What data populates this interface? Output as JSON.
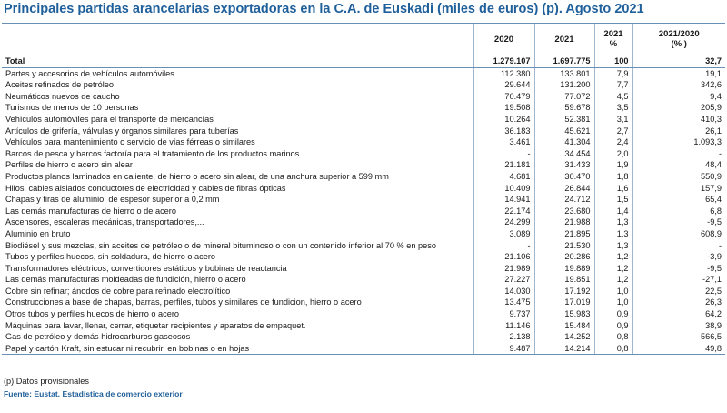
{
  "title": "Principales partidas arancelarias exportadoras en la C.A. de Euskadi (miles de euros) (p). Agosto 2021",
  "headers": [
    "",
    "2020",
    "2021",
    "2021\n%",
    "2021/2020\n(% )"
  ],
  "total": {
    "label": "Total",
    "v2020": "1.279.107",
    "v2021": "1.697.775",
    "pct": "100",
    "var": "32,7"
  },
  "rows": [
    {
      "label": "Partes y accesorios de vehículos automóviles",
      "v2020": "112.380",
      "v2021": "133.801",
      "pct": "7,9",
      "var": "19,1"
    },
    {
      "label": "Aceites refinados de petróleo",
      "v2020": "29.644",
      "v2021": "131.200",
      "pct": "7,7",
      "var": "342,6"
    },
    {
      "label": "Neumáticos nuevos de caucho",
      "v2020": "70.479",
      "v2021": "77.072",
      "pct": "4,5",
      "var": "9,4"
    },
    {
      "label": "Turismos de menos de  10 personas",
      "v2020": "19.508",
      "v2021": "59.678",
      "pct": "3,5",
      "var": "205,9"
    },
    {
      "label": "Vehículos automóviles para el transporte de mercancías",
      "v2020": "10.264",
      "v2021": "52.381",
      "pct": "3,1",
      "var": "410,3"
    },
    {
      "label": "Artículos de grifería, válvulas y órganos similares para tuberías",
      "v2020": "36.183",
      "v2021": "45.621",
      "pct": "2,7",
      "var": "26,1"
    },
    {
      "label": "Vehículos para mantenimiento o servicio de vías férreas o similares",
      "v2020": "3.461",
      "v2021": "41.304",
      "pct": "2,4",
      "var": "1.093,3"
    },
    {
      "label": "Barcos de pesca y barcos factoría para el tratamiento de los productos marinos",
      "v2020": "-",
      "v2021": "34.454",
      "pct": "2,0",
      "var": "-"
    },
    {
      "label": "Perfiles de hierro o acero sin alear",
      "v2020": "21.181",
      "v2021": "31.433",
      "pct": "1,9",
      "var": "48,4"
    },
    {
      "label": "Productos planos laminados en caliente, de hierro o acero sin alear, de una anchura superior a  599 mm",
      "v2020": "4.681",
      "v2021": "30.470",
      "pct": "1,8",
      "var": "550,9"
    },
    {
      "label": "Hilos, cables aislados conductores de electricidad y cables de fibras ópticas",
      "v2020": "10.409",
      "v2021": "26.844",
      "pct": "1,6",
      "var": "157,9"
    },
    {
      "label": "Chapas y tiras de aluminio, de espesor superior a 0,2 mm",
      "v2020": "14.941",
      "v2021": "24.712",
      "pct": "1,5",
      "var": "65,4"
    },
    {
      "label": "Las demás manufacturas de hierro o de acero",
      "v2020": "22.174",
      "v2021": "23.680",
      "pct": "1,4",
      "var": "6,8"
    },
    {
      "label": "Ascensores, escaleras mecánicas, transportadores,...",
      "v2020": "24.299",
      "v2021": "21.988",
      "pct": "1,3",
      "var": "-9,5"
    },
    {
      "label": "Aluminio en bruto",
      "v2020": "3.089",
      "v2021": "21.895",
      "pct": "1,3",
      "var": "608,9"
    },
    {
      "label": "Biodiésel y sus mezclas, sin aceites de petróleo o de mineral bituminoso o con un contenido inferior al 70 % en peso",
      "v2020": "-",
      "v2021": "21.530",
      "pct": "1,3",
      "var": "-"
    },
    {
      "label": "Tubos y perfiles huecos, sin soldadura, de hierro o acero",
      "v2020": "21.106",
      "v2021": "20.286",
      "pct": "1,2",
      "var": "-3,9"
    },
    {
      "label": "Transformadores eléctricos, convertidores estáticos y bobinas de reactancia",
      "v2020": "21.989",
      "v2021": "19.889",
      "pct": "1,2",
      "var": "-9,5"
    },
    {
      "label": "Las demás manufacturas moldeadas de fundición, hierro o acero",
      "v2020": "27.227",
      "v2021": "19.851",
      "pct": "1,2",
      "var": "-27,1"
    },
    {
      "label": "Cobre sin refinar; ánodos de cobre para refinado electrolítico",
      "v2020": "14.030",
      "v2021": "17.192",
      "pct": "1,0",
      "var": "22,5"
    },
    {
      "label": "Construcciones a base de chapas, barras, perfiles, tubos y similares de fundicion, hierro o acero",
      "v2020": "13.475",
      "v2021": "17.019",
      "pct": "1,0",
      "var": "26,3"
    },
    {
      "label": "Otros tubos y perfiles huecos de hierro o acero",
      "v2020": "9.737",
      "v2021": "15.983",
      "pct": "0,9",
      "var": "64,2"
    },
    {
      "label": "Máquinas para lavar, llenar, cerrar, etiquetar recipientes  y aparatos de empaquet.",
      "v2020": "11.146",
      "v2021": "15.484",
      "pct": "0,9",
      "var": "38,9"
    },
    {
      "label": "Gas de petróleo y demás hidrocarburos gaseosos",
      "v2020": "2.138",
      "v2021": "14.252",
      "pct": "0,8",
      "var": "566,5"
    },
    {
      "label": "Papel y cartón Kraft, sin estucar ni recubrir, en bobinas o en hojas",
      "v2020": "9.487",
      "v2021": "14.214",
      "pct": "0,8",
      "var": "49,8"
    }
  ],
  "footnote": "(p) Datos provisionales",
  "source": "Fuente: Eustat. Estadística de comercio exterior"
}
